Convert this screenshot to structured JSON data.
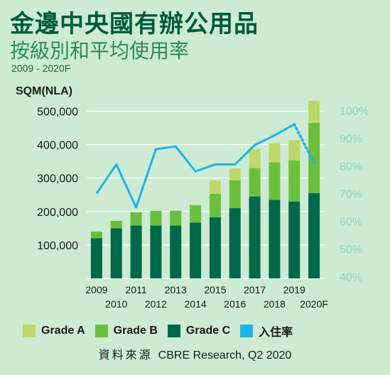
{
  "title": "金邊中央國有辦公用品",
  "subtitle": "按級別和平均使用率",
  "range": "2009 - 2020F",
  "source_cjk": "資料來源",
  "source": "CBRE Research, Q2 2020",
  "colors": {
    "background": "#ccebd2",
    "grade_a": "#bdd86a",
    "grade_b": "#6cbf3c",
    "grade_c": "#00684a",
    "occupancy": "#1fb3e6",
    "right_axis_text": "#8fd2c0"
  },
  "chart_data": {
    "type": "bar",
    "stacked": true,
    "categories": [
      "2009",
      "2010",
      "2011",
      "2012",
      "2013",
      "2014",
      "2015",
      "2016",
      "2017",
      "2018",
      "2019",
      "2020F"
    ],
    "ylabel": "SQM(NLA)",
    "ylim": [
      0,
      550000
    ],
    "yticks": [
      "100,000",
      "200,000",
      "300,000",
      "400,000",
      "500,000"
    ],
    "ytick_values": [
      100000,
      200000,
      300000,
      400000,
      500000
    ],
    "y2lim": [
      40,
      100
    ],
    "y2ticks": [
      "40%",
      "50%",
      "60%",
      "70%",
      "80%",
      "90%",
      "100%"
    ],
    "y2tick_values": [
      40,
      50,
      60,
      70,
      80,
      90,
      100
    ],
    "series": [
      {
        "name": "Grade C",
        "values": [
          120000,
          150000,
          158000,
          158000,
          158000,
          167000,
          183000,
          210000,
          245000,
          235000,
          230000,
          255000
        ]
      },
      {
        "name": "Grade B",
        "values": [
          20000,
          22000,
          40000,
          44000,
          44000,
          52000,
          70000,
          83000,
          85000,
          112000,
          123000,
          210000
        ]
      },
      {
        "name": "Grade A",
        "values": [
          0,
          0,
          0,
          0,
          0,
          0,
          40000,
          35000,
          57000,
          57000,
          60000,
          66000
        ]
      },
      {
        "name": "入住率",
        "axis": "right",
        "values": [
          70,
          80.5,
          65,
          86,
          87,
          78,
          80.5,
          80.5,
          87.5,
          91,
          95,
          81
        ],
        "projected_from_index": 10
      }
    ],
    "legend": [
      "Grade A",
      "Grade B",
      "Grade C",
      "入住率"
    ],
    "legend_position": "bottom",
    "grid": true
  }
}
